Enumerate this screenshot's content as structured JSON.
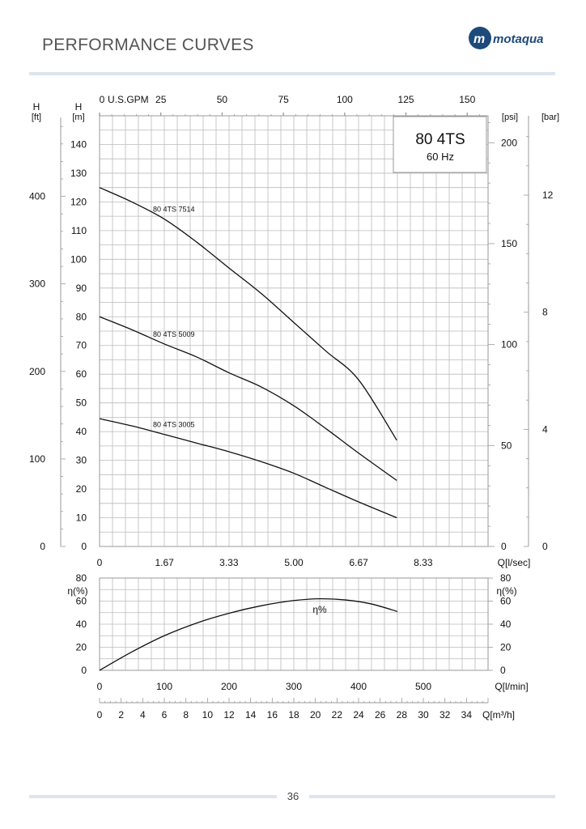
{
  "page": {
    "title": "PERFORMANCE CURVES",
    "page_number": "36",
    "logo_text": "Motaqua",
    "rule_color": "#dde4ee",
    "brand_color": "#1d4a7a"
  },
  "chart_data": [
    {
      "type": "line",
      "title": "80 4TS",
      "subtitle": "60 Hz",
      "xlabel": "Q[l/sec]",
      "xlim": [
        0,
        10
      ],
      "x_ticks": [
        "0",
        "1.67",
        "3.33",
        "5.00",
        "6.67",
        "8.33"
      ],
      "x_tick_values": [
        0,
        1.67,
        3.33,
        5.0,
        6.67,
        8.33
      ],
      "top_axis": {
        "label": "U.S.GPM",
        "ticks": [
          "0",
          "25",
          "50",
          "75",
          "100",
          "125",
          "150"
        ],
        "values": [
          0,
          25,
          50,
          75,
          100,
          125,
          150
        ]
      },
      "ylabel": "H [m]",
      "ylabel_top": "H",
      "ylabel_unit": "[m]",
      "ylim": [
        0,
        150
      ],
      "y_ticks": [
        "0",
        "10",
        "20",
        "30",
        "40",
        "50",
        "60",
        "70",
        "80",
        "90",
        "100",
        "110",
        "120",
        "130",
        "140"
      ],
      "left_axis_ft": {
        "label_top": "H",
        "label_unit": "[ft]",
        "ticks": [
          "0",
          "100",
          "200",
          "300",
          "400"
        ],
        "values": [
          0,
          100,
          200,
          300,
          400
        ]
      },
      "right_axis_psi": {
        "label": "[psi]",
        "ticks": [
          "0",
          "50",
          "100",
          "150",
          "200"
        ],
        "values": [
          0,
          50,
          100,
          150,
          200
        ]
      },
      "right_axis_bar": {
        "label": "[bar]",
        "ticks": [
          "0",
          "4",
          "8",
          "12"
        ],
        "values": [
          0,
          4,
          8,
          12
        ]
      },
      "grid": true,
      "series": [
        {
          "name": "80 4TS 7514",
          "x": [
            0,
            0.83,
            1.67,
            2.5,
            3.33,
            4.17,
            5.0,
            5.83,
            6.67,
            7.65
          ],
          "y": [
            125,
            120,
            114,
            106,
            97,
            88,
            78,
            68,
            58,
            37
          ]
        },
        {
          "name": "80 4TS 5009",
          "x": [
            0,
            0.83,
            1.67,
            2.5,
            3.33,
            4.17,
            5.0,
            5.83,
            6.67,
            7.65
          ],
          "y": [
            80,
            75.5,
            70.5,
            66,
            60.5,
            55.5,
            49,
            41,
            32.5,
            23
          ]
        },
        {
          "name": "80 4TS 3005",
          "x": [
            0,
            0.83,
            1.67,
            2.5,
            3.33,
            4.17,
            5.0,
            5.83,
            6.67,
            7.65
          ],
          "y": [
            44.5,
            42,
            39,
            36,
            33,
            29.5,
            25.5,
            20.5,
            15.5,
            10
          ]
        }
      ]
    },
    {
      "type": "line",
      "xlabel": "Q[l/min]",
      "xlim": [
        0,
        600
      ],
      "x_ticks": [
        "0",
        "100",
        "200",
        "300",
        "400",
        "500"
      ],
      "x_tick_values": [
        0,
        100,
        200,
        300,
        400,
        500
      ],
      "ylabel": "η(%)",
      "ylim": [
        0,
        80
      ],
      "y_ticks": [
        "0",
        "20",
        "40",
        "60",
        "80"
      ],
      "grid": true,
      "series": [
        {
          "name": "η%",
          "x": [
            0,
            50,
            100,
            150,
            200,
            250,
            300,
            340,
            380,
            420,
            460
          ],
          "y": [
            0,
            16,
            30,
            41,
            49.5,
            56,
            60.5,
            62,
            61,
            57.5,
            51
          ]
        }
      ],
      "secondary_x_axis": {
        "label": "Q[m³/h]",
        "ticks": [
          "0",
          "2",
          "4",
          "6",
          "8",
          "10",
          "12",
          "14",
          "16",
          "18",
          "20",
          "22",
          "24",
          "26",
          "28",
          "30",
          "32",
          "34"
        ],
        "range": [
          0,
          36
        ]
      }
    }
  ]
}
